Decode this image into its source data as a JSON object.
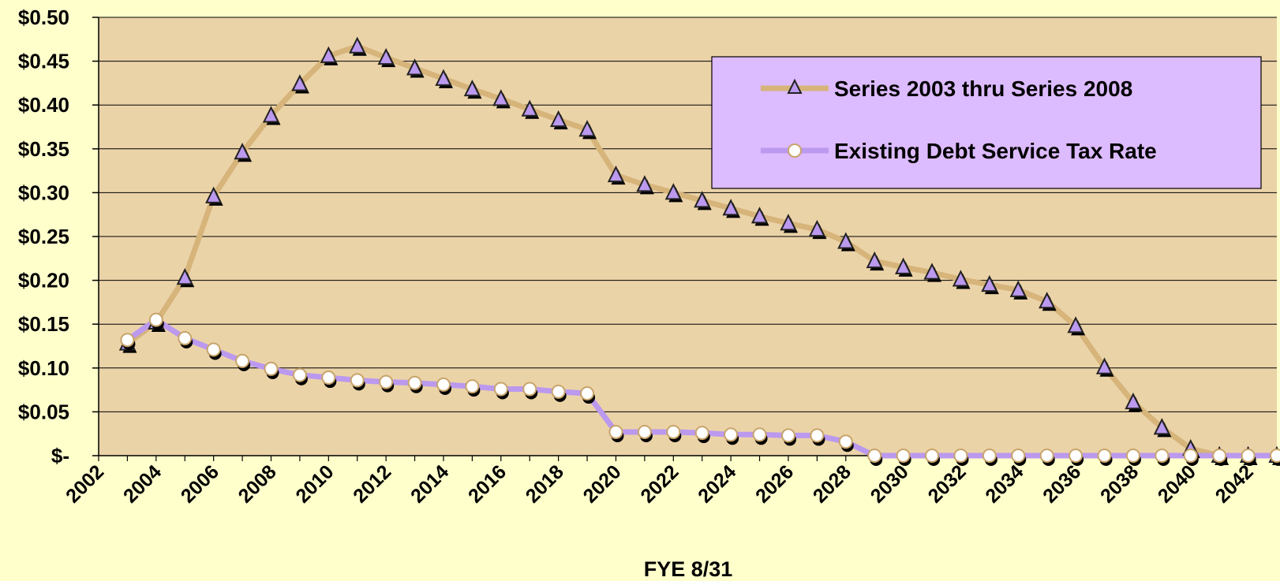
{
  "chart_data": {
    "type": "line",
    "title": "",
    "xlabel": "FYE 8/31",
    "ylabel": "",
    "ylim": [
      0,
      0.5
    ],
    "xlim": [
      2002,
      2043
    ],
    "grid": true,
    "legend_position": "top-right",
    "x_tick_labels": [
      "2002",
      "2004",
      "2006",
      "2008",
      "2010",
      "2012",
      "2014",
      "2016",
      "2018",
      "2020",
      "2022",
      "2024",
      "2026",
      "2028",
      "2030",
      "2032",
      "2034",
      "2036",
      "2038",
      "2040",
      "2042"
    ],
    "y_tick_labels": [
      "$-",
      "$0.05",
      "$0.10",
      "$0.15",
      "$0.20",
      "$0.25",
      "$0.30",
      "$0.35",
      "$0.40",
      "$0.45",
      "$0.50"
    ],
    "colors": {
      "background": "#FFFFCC",
      "plot_area": "#EBD3A8",
      "series1_line": "#D6B47A",
      "marker_fill": "#BB99EE",
      "series2_line": "#BB99EE",
      "series2_marker": "#FFFFFF",
      "legend_bg": "#DDBBFF"
    },
    "x": [
      2003,
      2004,
      2005,
      2006,
      2007,
      2008,
      2009,
      2010,
      2011,
      2012,
      2013,
      2014,
      2015,
      2016,
      2017,
      2018,
      2019,
      2020,
      2021,
      2022,
      2023,
      2024,
      2025,
      2026,
      2027,
      2028,
      2029,
      2030,
      2031,
      2032,
      2033,
      2034,
      2035,
      2036,
      2037,
      2038,
      2039,
      2040,
      2041,
      2042,
      2043
    ],
    "series": [
      {
        "name": "Series 2003 thru Series 2008",
        "marker": "triangle",
        "values": [
          0.128,
          0.152,
          0.203,
          0.296,
          0.346,
          0.388,
          0.424,
          0.456,
          0.467,
          0.454,
          0.442,
          0.43,
          0.418,
          0.407,
          0.395,
          0.383,
          0.372,
          0.32,
          0.309,
          0.3,
          0.291,
          0.282,
          0.273,
          0.265,
          0.258,
          0.244,
          0.222,
          0.215,
          0.209,
          0.201,
          0.195,
          0.189,
          0.176,
          0.148,
          0.101,
          0.061,
          0.032,
          0.008,
          0,
          0,
          0
        ]
      },
      {
        "name": "Existing Debt Service Tax Rate",
        "marker": "circle",
        "values": [
          0.132,
          0.155,
          0.134,
          0.121,
          0.108,
          0.099,
          0.092,
          0.089,
          0.086,
          0.084,
          0.083,
          0.081,
          0.079,
          0.076,
          0.076,
          0.073,
          0.071,
          0.027,
          0.027,
          0.027,
          0.026,
          0.024,
          0.024,
          0.023,
          0.023,
          0.016,
          0,
          0,
          0,
          0,
          0,
          0,
          0,
          0,
          0,
          0,
          0,
          0,
          0,
          0,
          0
        ]
      }
    ]
  }
}
